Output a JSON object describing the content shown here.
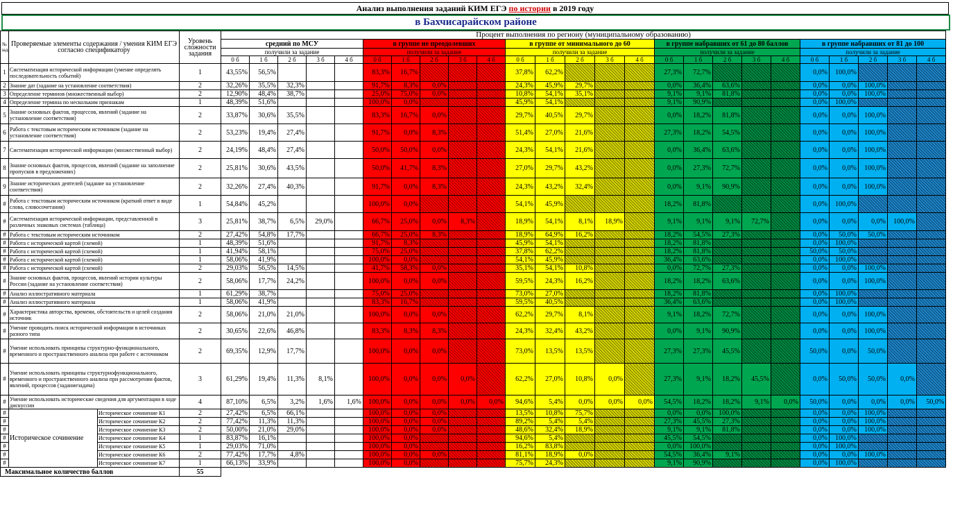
{
  "header": {
    "title_prefix": "Анализ выполнения заданий КИМ ЕГЭ ",
    "title_subject": "по истории",
    "title_suffix": " в 2019 году",
    "district": "в Бахчисарайском районе"
  },
  "columns": {
    "task_no": "№ задания",
    "elements": "Проверяемые элементы содержания / умения КИМ ЕГЭ согласно спецификатору",
    "level": "Уровень сложности задания",
    "percent_title": "Процент выполнения по региону (муниципальному образованию)",
    "got_label": "получили за задание",
    "groups": [
      "средний по МСУ",
      "в группе не преодолевших",
      "в группе от минимального до 60",
      "в группе набравших от 61 до 80 баллов",
      "в группе набравших от 81 до 100"
    ],
    "scores": [
      "0 б",
      "1 б",
      "2 б",
      "3 б",
      "4 б"
    ]
  },
  "colors": {
    "red": "#ff0000",
    "yellow": "#ffff00",
    "green": "#00a650",
    "blue": "#00b0f0",
    "title_blue": "#1a2a8c",
    "border_green": "#1e8a45"
  },
  "rows": [
    {
      "n": "1",
      "text": "Систематизация исторической информации (умение определять последовательность событий)",
      "lv": "1",
      "m": [
        "43,55%",
        "56,5%"
      ],
      "r": [
        "83,3%",
        "16,7%"
      ],
      "y": [
        "37,8%",
        "62,2%"
      ],
      "g": [
        "27,3%",
        "72,7%"
      ],
      "b": [
        "0,0%",
        "100,0%"
      ]
    },
    {
      "n": "2",
      "text": "Знание дат (задание на установление соответствия)",
      "lv": "2",
      "m": [
        "32,26%",
        "35,5%",
        "32,3%"
      ],
      "r": [
        "91,7%",
        "8,3%",
        "0,0%"
      ],
      "y": [
        "24,3%",
        "45,9%",
        "29,7%"
      ],
      "g": [
        "0,0%",
        "36,4%",
        "63,6%"
      ],
      "b": [
        "0,0%",
        "0,0%",
        "100,0%"
      ]
    },
    {
      "n": "3",
      "text": "Определение терминов (множественный выбор)",
      "lv": "2",
      "m": [
        "12,90%",
        "48,4%",
        "38,7%"
      ],
      "r": [
        "25,0%",
        "75,0%",
        "0,0%"
      ],
      "y": [
        "10,8%",
        "54,1%",
        "35,1%"
      ],
      "g": [
        "9,1%",
        "9,1%",
        "81,8%"
      ],
      "b": [
        "0,0%",
        "0,0%",
        "100,0%"
      ]
    },
    {
      "n": "4",
      "text": "Определение термина по нескольким признакам",
      "lv": "1",
      "m": [
        "48,39%",
        "51,6%"
      ],
      "r": [
        "100,0%",
        "0,0%"
      ],
      "y": [
        "45,9%",
        "54,1%"
      ],
      "g": [
        "9,1%",
        "90,9%"
      ],
      "b": [
        "0,0%",
        "100,0%"
      ]
    },
    {
      "n": "5",
      "text": "Знание основных фактов, процессов, явлений (задание на установление соответствия)",
      "lv": "2",
      "m": [
        "33,87%",
        "30,6%",
        "35,5%"
      ],
      "r": [
        "83,3%",
        "16,7%",
        "0,0%"
      ],
      "y": [
        "29,7%",
        "40,5%",
        "29,7%"
      ],
      "g": [
        "0,0%",
        "18,2%",
        "81,8%"
      ],
      "b": [
        "0,0%",
        "0,0%",
        "100,0%"
      ]
    },
    {
      "n": "6",
      "text": "Работа с текстовым историческим источником (задание на установление соответствия)",
      "lv": "2",
      "m": [
        "53,23%",
        "19,4%",
        "27,4%"
      ],
      "r": [
        "91,7%",
        "0,0%",
        "8,3%"
      ],
      "y": [
        "51,4%",
        "27,0%",
        "21,6%"
      ],
      "g": [
        "27,3%",
        "18,2%",
        "54,5%"
      ],
      "b": [
        "0,0%",
        "0,0%",
        "100,0%"
      ]
    },
    {
      "n": "7",
      "text": "Систематизация исторической информации (множественный выбор)",
      "lv": "2",
      "m": [
        "24,19%",
        "48,4%",
        "27,4%"
      ],
      "r": [
        "50,0%",
        "50,0%",
        "0,0%"
      ],
      "y": [
        "24,3%",
        "54,1%",
        "21,6%"
      ],
      "g": [
        "0,0%",
        "36,4%",
        "63,6%"
      ],
      "b": [
        "0,0%",
        "0,0%",
        "100,0%"
      ]
    },
    {
      "n": "8",
      "text": "Знание основных фактов, процессов, явлений (задание на заполнение пропусков в предложениях)",
      "lv": "2",
      "m": [
        "25,81%",
        "30,6%",
        "43,5%"
      ],
      "r": [
        "50,0%",
        "41,7%",
        "8,3%"
      ],
      "y": [
        "27,0%",
        "29,7%",
        "43,2%"
      ],
      "g": [
        "0,0%",
        "27,3%",
        "72,7%"
      ],
      "b": [
        "0,0%",
        "0,0%",
        "100,0%"
      ]
    },
    {
      "n": "9",
      "text": "Знание исторических деятелей (задание на установление соответствия)",
      "lv": "2",
      "m": [
        "32,26%",
        "27,4%",
        "40,3%"
      ],
      "r": [
        "91,7%",
        "0,0%",
        "8,3%"
      ],
      "y": [
        "24,3%",
        "43,2%",
        "32,4%"
      ],
      "g": [
        "0,0%",
        "9,1%",
        "90,9%"
      ],
      "b": [
        "0,0%",
        "0,0%",
        "100,0%"
      ]
    },
    {
      "n": "#",
      "text": "Работа с текстовым историческим источником (краткий ответ в виде слова, словосочетания)",
      "lv": "1",
      "m": [
        "54,84%",
        "45,2%"
      ],
      "r": [
        "100,0%",
        "0,0%"
      ],
      "y": [
        "54,1%",
        "45,9%"
      ],
      "g": [
        "18,2%",
        "81,8%"
      ],
      "b": [
        "0,0%",
        "100,0%"
      ]
    },
    {
      "n": "#",
      "text": "Систематизация исторической информации, представленной в различных знаковых системах (таблица)",
      "lv": "3",
      "m": [
        "25,81%",
        "38,7%",
        "6,5%",
        "29,0%"
      ],
      "r": [
        "66,7%",
        "25,0%",
        "0,0%",
        "8,3%"
      ],
      "y": [
        "18,9%",
        "54,1%",
        "8,1%",
        "18,9%"
      ],
      "g": [
        "9,1%",
        "9,1%",
        "9,1%",
        "72,7%"
      ],
      "b": [
        "0,0%",
        "0,0%",
        "0,0%",
        "100,0%"
      ]
    },
    {
      "n": "#",
      "text": "Работа с текстовым историческим источником",
      "lv": "2",
      "m": [
        "27,42%",
        "54,8%",
        "17,7%"
      ],
      "r": [
        "66,7%",
        "25,0%",
        "8,3%"
      ],
      "y": [
        "18,9%",
        "64,9%",
        "16,2%"
      ],
      "g": [
        "18,2%",
        "54,5%",
        "27,3%"
      ],
      "b": [
        "0,0%",
        "50,0%",
        "50,0%"
      ]
    },
    {
      "n": "#",
      "text": "Работа с исторической картой (схемой)",
      "lv": "1",
      "m": [
        "48,39%",
        "51,6%"
      ],
      "r": [
        "91,7%",
        "8,3%"
      ],
      "y": [
        "45,9%",
        "54,1%"
      ],
      "g": [
        "18,2%",
        "81,8%"
      ],
      "b": [
        "0,0%",
        "100,0%"
      ]
    },
    {
      "n": "#",
      "text": "Работа с исторической картой (схемой)",
      "lv": "1",
      "m": [
        "41,94%",
        "58,1%"
      ],
      "r": [
        "75,0%",
        "25,0%"
      ],
      "y": [
        "37,8%",
        "62,2%"
      ],
      "g": [
        "18,2%",
        "81,8%"
      ],
      "b": [
        "50,0%",
        "50,0%"
      ]
    },
    {
      "n": "#",
      "text": "Работа с исторической картой (схемой)",
      "lv": "1",
      "m": [
        "58,06%",
        "41,9%"
      ],
      "r": [
        "100,0%",
        "0,0%"
      ],
      "y": [
        "54,1%",
        "45,9%"
      ],
      "g": [
        "36,4%",
        "63,6%"
      ],
      "b": [
        "0,0%",
        "100,0%"
      ]
    },
    {
      "n": "#",
      "text": "Работа с исторической картой (схемой)",
      "lv": "2",
      "m": [
        "29,03%",
        "56,5%",
        "14,5%"
      ],
      "r": [
        "41,7%",
        "58,3%",
        "0,0%"
      ],
      "y": [
        "35,1%",
        "54,1%",
        "10,8%"
      ],
      "g": [
        "0,0%",
        "72,7%",
        "27,3%"
      ],
      "b": [
        "0,0%",
        "0,0%",
        "100,0%"
      ]
    },
    {
      "n": "#",
      "text": "Знание основных фактов, процессов, явлений истории культуры России (задание на установление соответствия)",
      "lv": "2",
      "m": [
        "58,06%",
        "17,7%",
        "24,2%"
      ],
      "r": [
        "100,0%",
        "0,0%",
        "0,0%"
      ],
      "y": [
        "59,5%",
        "24,3%",
        "16,2%"
      ],
      "g": [
        "18,2%",
        "18,2%",
        "63,6%"
      ],
      "b": [
        "0,0%",
        "0,0%",
        "100,0%"
      ]
    },
    {
      "n": "#",
      "text": "Анализ иллюстративного материала",
      "lv": "1",
      "m": [
        "61,29%",
        "38,7%"
      ],
      "r": [
        "75,0%",
        "25,0%"
      ],
      "y": [
        "73,0%",
        "27,0%"
      ],
      "g": [
        "18,2%",
        "81,8%"
      ],
      "b": [
        "0,0%",
        "100,0%"
      ]
    },
    {
      "n": "#",
      "text": "Анализ иллюстративного материала",
      "lv": "1",
      "m": [
        "58,06%",
        "41,9%"
      ],
      "r": [
        "83,3%",
        "16,7%"
      ],
      "y": [
        "59,5%",
        "40,5%"
      ],
      "g": [
        "36,4%",
        "63,6%"
      ],
      "b": [
        "0,0%",
        "100,0%"
      ]
    },
    {
      "n": "#",
      "text": "Характеристика авторства, времени, обстоятельств и целей создания источник",
      "lv": "2",
      "m": [
        "58,06%",
        "21,0%",
        "21,0%"
      ],
      "r": [
        "100,0%",
        "0,0%",
        "0,0%"
      ],
      "y": [
        "62,2%",
        "29,7%",
        "8,1%"
      ],
      "g": [
        "9,1%",
        "18,2%",
        "72,7%"
      ],
      "b": [
        "0,0%",
        "0,0%",
        "100,0%"
      ]
    },
    {
      "n": "#",
      "text": "Умение проводить поиск исторической информации в источниках разного типа",
      "lv": "2",
      "m": [
        "30,65%",
        "22,6%",
        "46,8%"
      ],
      "r": [
        "83,3%",
        "8,3%",
        "8,3%"
      ],
      "y": [
        "24,3%",
        "32,4%",
        "43,2%"
      ],
      "g": [
        "0,0%",
        "9,1%",
        "90,9%"
      ],
      "b": [
        "0,0%",
        "0,0%",
        "100,0%"
      ]
    },
    {
      "n": "#",
      "text": "Умение использовать принципы структурно-функционального, временного и пространственного анализа при работе с источником",
      "lv": "2",
      "m": [
        "69,35%",
        "12,9%",
        "17,7%"
      ],
      "r": [
        "100,0%",
        "0,0%",
        "0,0%"
      ],
      "y": [
        "73,0%",
        "13,5%",
        "13,5%"
      ],
      "g": [
        "27,3%",
        "27,3%",
        "45,5%"
      ],
      "b": [
        "50,0%",
        "0,0%",
        "50,0%"
      ]
    },
    {
      "n": "#",
      "text": "Умение использовать принципы структурнофункционального, временного и пространственного анализа при рассмотрении фактов, явлений, процессов (заданиезадача)",
      "lv": "3",
      "m": [
        "61,29%",
        "19,4%",
        "11,3%",
        "8,1%"
      ],
      "r": [
        "100,0%",
        "0,0%",
        "0,0%",
        "0,0%"
      ],
      "y": [
        "62,2%",
        "27,0%",
        "10,8%",
        "0,0%"
      ],
      "g": [
        "27,3%",
        "9,1%",
        "18,2%",
        "45,5%"
      ],
      "b": [
        "0,0%",
        "50,0%",
        "50,0%",
        "0,0%"
      ]
    },
    {
      "n": "#",
      "text": "Умение использовать исторические сведения для аргументации в ходе дискуссии",
      "lv": "4",
      "m": [
        "87,10%",
        "6,5%",
        "3,2%",
        "1,6%",
        "1,6%"
      ],
      "r": [
        "100,0%",
        "0,0%",
        "0,0%",
        "0,0%",
        "0,0%"
      ],
      "y": [
        "94,6%",
        "5,4%",
        "0,0%",
        "0,0%",
        "0,0%"
      ],
      "g": [
        "54,5%",
        "18,2%",
        "18,2%",
        "9,1%",
        "0,0%"
      ],
      "b": [
        "50,0%",
        "0,0%",
        "0,0%",
        "0,0%",
        "50,0%"
      ]
    },
    {
      "n": "#",
      "text": "Историческое сочинение К1",
      "lv": "2",
      "m": [
        "27,42%",
        "6,5%",
        "66,1%"
      ],
      "r": [
        "100,0%",
        "0,0%",
        "0,0%"
      ],
      "y": [
        "13,5%",
        "10,8%",
        "75,7%"
      ],
      "g": [
        "0,0%",
        "0,0%",
        "100,0%"
      ],
      "b": [
        "0,0%",
        "0,0%",
        "100,0%"
      ]
    },
    {
      "n": "#",
      "text": "Историческое сочинение К2",
      "lv": "2",
      "m": [
        "77,42%",
        "11,3%",
        "11,3%"
      ],
      "r": [
        "100,0%",
        "0,0%",
        "0,0%"
      ],
      "y": [
        "89,2%",
        "5,4%",
        "5,4%"
      ],
      "g": [
        "27,3%",
        "45,5%",
        "27,3%"
      ],
      "b": [
        "0,0%",
        "0,0%",
        "100,0%"
      ]
    },
    {
      "n": "#",
      "text": "Историческое сочинение К3",
      "lv": "2",
      "m": [
        "50,00%",
        "21,0%",
        "29,0%"
      ],
      "r": [
        "100,0%",
        "0,0%",
        "0,0%"
      ],
      "y": [
        "48,6%",
        "32,4%",
        "18,9%"
      ],
      "g": [
        "9,1%",
        "9,1%",
        "81,8%"
      ],
      "b": [
        "0,0%",
        "0,0%",
        "100,0%"
      ]
    },
    {
      "n": "#",
      "text": "Историческое сочинение К4",
      "lv": "1",
      "m": [
        "83,87%",
        "16,1%"
      ],
      "r": [
        "100,0%",
        "0,0%"
      ],
      "y": [
        "94,6%",
        "5,4%"
      ],
      "g": [
        "45,5%",
        "54,5%"
      ],
      "b": [
        "0,0%",
        "100,0%"
      ]
    },
    {
      "n": "#",
      "text": "Историческое сочинение К5",
      "lv": "1",
      "m": [
        "29,03%",
        "71,0%"
      ],
      "r": [
        "100,0%",
        "0,0%"
      ],
      "y": [
        "16,2%",
        "83,8%"
      ],
      "g": [
        "0,0%",
        "100,0%"
      ],
      "b": [
        "0,0%",
        "100,0%"
      ]
    },
    {
      "n": "#",
      "text": "Историческое сочинение К6",
      "lv": "2",
      "m": [
        "77,42%",
        "17,7%",
        "4,8%"
      ],
      "r": [
        "100,0%",
        "0,0%",
        "0,0%"
      ],
      "y": [
        "81,1%",
        "18,9%",
        "0,0%"
      ],
      "g": [
        "54,5%",
        "36,4%",
        "9,1%"
      ],
      "b": [
        "0,0%",
        "0,0%",
        "100,0%"
      ]
    },
    {
      "n": "#",
      "text": "Историческое сочинение К7",
      "lv": "1",
      "m": [
        "66,13%",
        "33,9%"
      ],
      "r": [
        "100,0%",
        "0,0%"
      ],
      "y": [
        "75,7%",
        "24,3%"
      ],
      "g": [
        "9,1%",
        "90,9%"
      ],
      "b": [
        "0,0%",
        "100,0%"
      ]
    }
  ],
  "essay_label": "Историческое сочинение",
  "footer": {
    "label": "Максимальное количество баллов",
    "value": "55"
  }
}
